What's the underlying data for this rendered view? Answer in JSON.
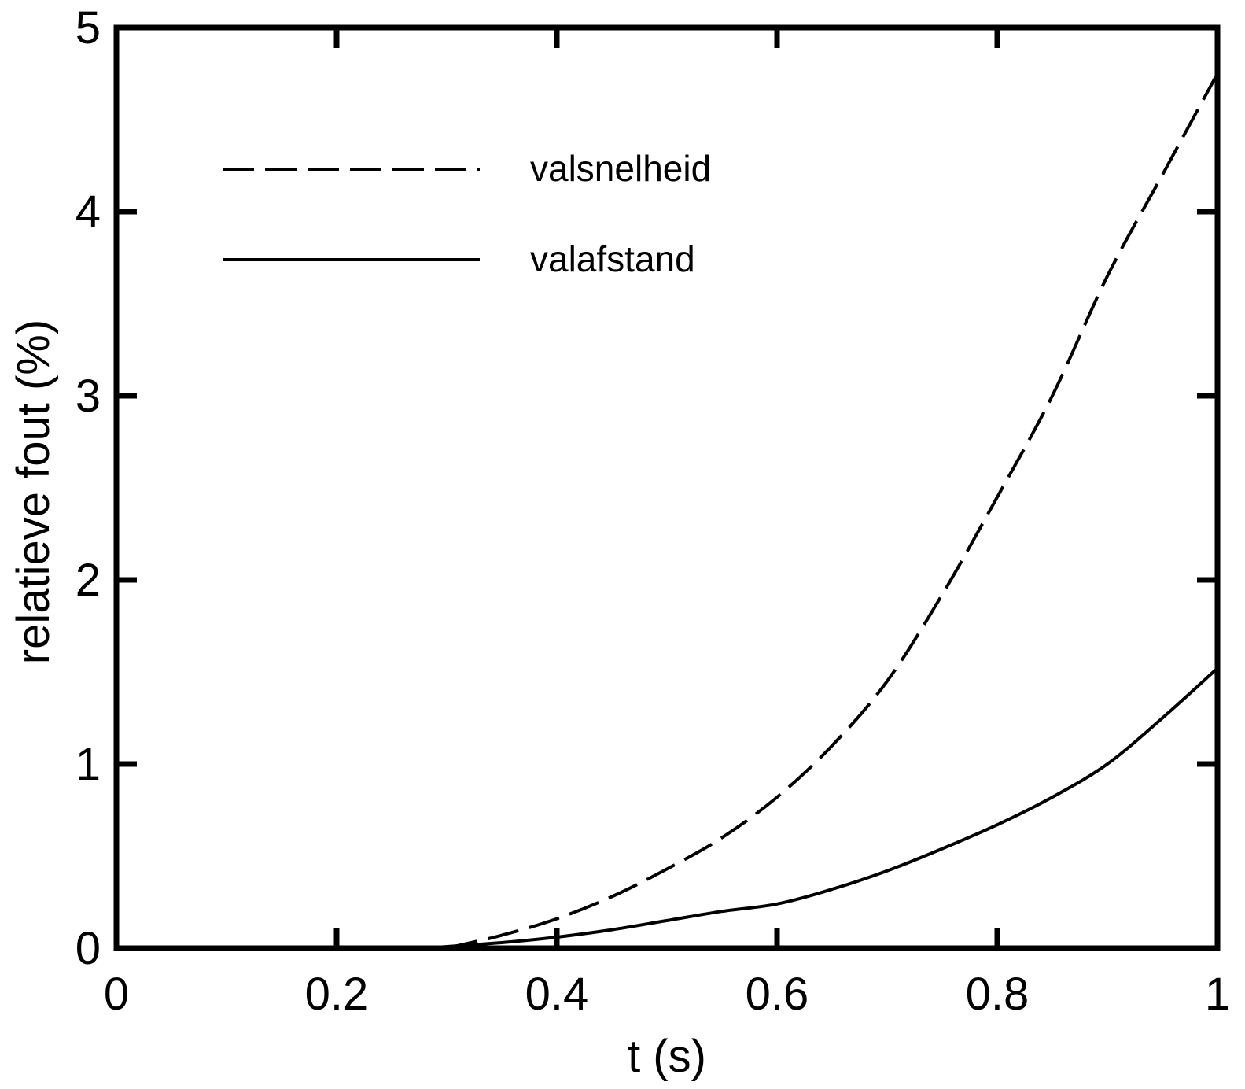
{
  "chart_data": {
    "type": "line",
    "title": "",
    "xlabel": "t (s)",
    "ylabel": "relatieve fout (%)",
    "xlim": [
      0,
      1
    ],
    "ylim": [
      0,
      5
    ],
    "xticks": [
      0,
      0.2,
      0.4,
      0.6,
      0.8,
      1
    ],
    "xtick_labels": [
      "0",
      "0.2",
      "0.4",
      "0.6",
      "0.8",
      "1"
    ],
    "yticks": [
      0,
      1,
      2,
      3,
      4,
      5
    ],
    "ytick_labels": [
      "0",
      "1",
      "2",
      "3",
      "4",
      "5"
    ],
    "grid": false,
    "legend_position": "top-left",
    "series": [
      {
        "name": "valsnelheid",
        "style": "dashed",
        "color": "#000000",
        "x": [
          0.3,
          0.35,
          0.4,
          0.45,
          0.5,
          0.55,
          0.6,
          0.65,
          0.7,
          0.75,
          0.8,
          0.85,
          0.9,
          0.95,
          1.0
        ],
        "y": [
          0.0,
          0.07,
          0.16,
          0.28,
          0.43,
          0.6,
          0.82,
          1.1,
          1.45,
          1.92,
          2.45,
          3.0,
          3.65,
          4.2,
          4.75
        ]
      },
      {
        "name": "valafstand",
        "style": "solid",
        "color": "#000000",
        "x": [
          0.28,
          0.35,
          0.4,
          0.45,
          0.5,
          0.55,
          0.6,
          0.65,
          0.7,
          0.75,
          0.8,
          0.85,
          0.9,
          0.95,
          1.0
        ],
        "y": [
          0.0,
          0.03,
          0.06,
          0.1,
          0.15,
          0.2,
          0.24,
          0.32,
          0.42,
          0.54,
          0.67,
          0.82,
          1.0,
          1.25,
          1.52
        ]
      }
    ]
  }
}
